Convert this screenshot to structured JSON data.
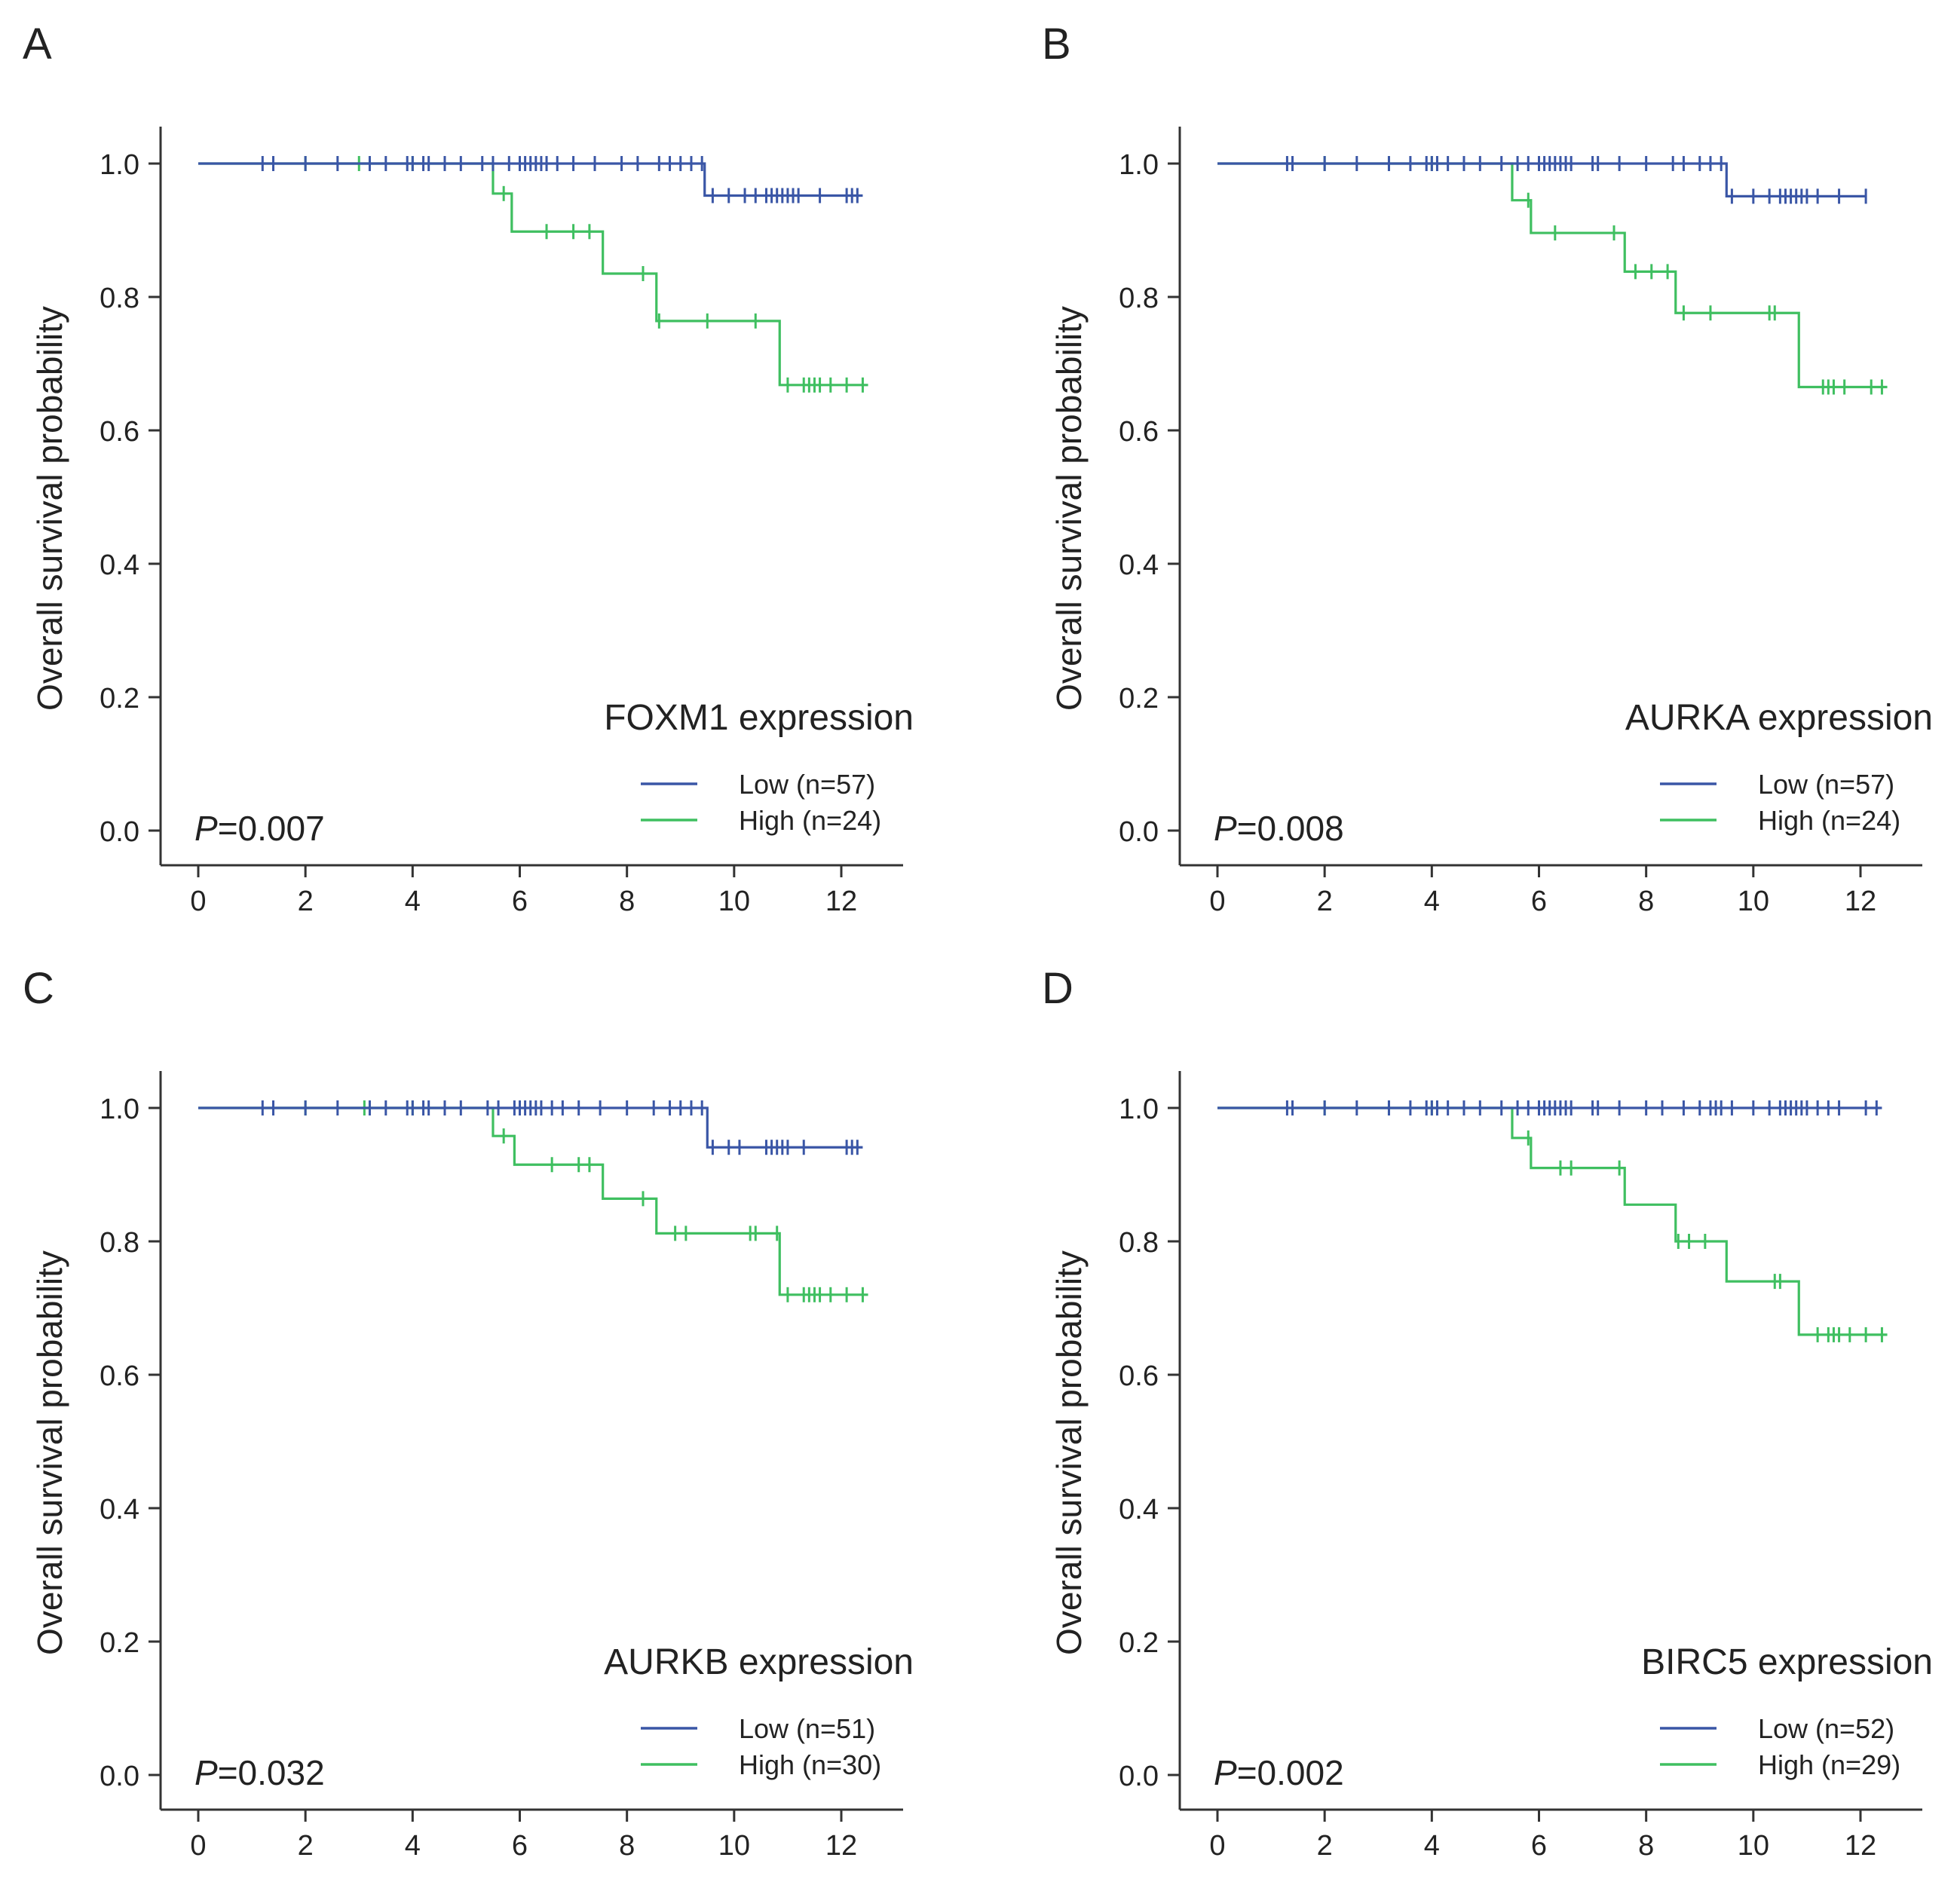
{
  "colors": {
    "low": "#3a56a6",
    "high": "#3fbf60",
    "axis": "#333333",
    "text": "#222222"
  },
  "chart_data": [
    {
      "type": "line",
      "panel": "A",
      "title": "FOXM1 expression",
      "ylabel": "Overall survival probability",
      "xlabel": "",
      "xlim": [
        0,
        12.5
      ],
      "ylim": [
        0.0,
        1.0
      ],
      "xticks": [
        "0",
        "2",
        "4",
        "6",
        "8",
        "10",
        "12"
      ],
      "yticks": [
        "0.0",
        "0.2",
        "0.4",
        "0.6",
        "0.8",
        "1.0"
      ],
      "pvalue_prefix": "P",
      "pvalue": "=0.007",
      "legend_position": "bottom-right",
      "series": [
        {
          "name": "Low (n=57)",
          "color_key": "low",
          "steps": [
            [
              0,
              1.0
            ],
            [
              9.45,
              0.952
            ],
            [
              12.4,
              0.952
            ]
          ],
          "censored": [
            1.2,
            1.4,
            2.0,
            2.6,
            3.2,
            3.5,
            3.9,
            4.0,
            4.2,
            4.3,
            4.6,
            4.9,
            5.3,
            5.5,
            5.8,
            6.0,
            6.1,
            6.2,
            6.3,
            6.4,
            6.5,
            6.7,
            7.0,
            7.4,
            7.9,
            8.2,
            8.6,
            8.8,
            9.0,
            9.2,
            9.4,
            9.6,
            9.9,
            10.2,
            10.4,
            10.6,
            10.7,
            10.8,
            10.9,
            11.0,
            11.1,
            11.2,
            11.6,
            12.1,
            12.2,
            12.3
          ]
        },
        {
          "name": "High (n=24)",
          "color_key": "high",
          "steps": [
            [
              0,
              1.0
            ],
            [
              5.5,
              0.955
            ],
            [
              5.85,
              0.898
            ],
            [
              7.55,
              0.835
            ],
            [
              8.55,
              0.764
            ],
            [
              10.85,
              0.668
            ],
            [
              12.5,
              0.668
            ]
          ],
          "censored": [
            2.0,
            3.0,
            4.0,
            5.7,
            6.5,
            7.0,
            7.3,
            8.3,
            8.6,
            9.5,
            10.4,
            11.0,
            11.3,
            11.4,
            11.5,
            11.6,
            11.8,
            12.1,
            12.4
          ]
        }
      ]
    },
    {
      "type": "line",
      "panel": "B",
      "title": "AURKA expression",
      "ylabel": "Overall survival probability",
      "xlabel": "",
      "xlim": [
        0,
        12.5
      ],
      "ylim": [
        0.0,
        1.0
      ],
      "xticks": [
        "0",
        "2",
        "4",
        "6",
        "8",
        "10",
        "12"
      ],
      "yticks": [
        "0.0",
        "0.2",
        "0.4",
        "0.6",
        "0.8",
        "1.0"
      ],
      "pvalue_prefix": "P",
      "pvalue": "=0.008",
      "legend_position": "bottom-right",
      "series": [
        {
          "name": "Low (n=57)",
          "color_key": "low",
          "steps": [
            [
              0,
              1.0
            ],
            [
              9.5,
              0.951
            ],
            [
              12.1,
              0.951
            ]
          ],
          "censored": [
            1.3,
            1.4,
            2.0,
            2.6,
            3.2,
            3.6,
            3.9,
            4.0,
            4.1,
            4.3,
            4.6,
            4.9,
            5.3,
            5.6,
            5.8,
            6.0,
            6.1,
            6.2,
            6.3,
            6.4,
            6.5,
            6.6,
            7.0,
            7.1,
            7.5,
            8.0,
            8.5,
            8.7,
            9.0,
            9.2,
            9.4,
            9.6,
            10.0,
            10.3,
            10.5,
            10.6,
            10.7,
            10.8,
            10.9,
            11.0,
            11.2,
            11.6,
            12.1
          ]
        },
        {
          "name": "High (n=24)",
          "color_key": "high",
          "steps": [
            [
              0,
              1.0
            ],
            [
              5.5,
              0.945
            ],
            [
              5.85,
              0.896
            ],
            [
              7.6,
              0.838
            ],
            [
              8.55,
              0.776
            ],
            [
              10.85,
              0.665
            ],
            [
              12.5,
              0.665
            ]
          ],
          "censored": [
            2.0,
            3.2,
            4.0,
            5.8,
            6.3,
            7.4,
            7.8,
            8.1,
            8.4,
            8.7,
            9.2,
            10.3,
            10.4,
            11.3,
            11.4,
            11.5,
            11.7,
            12.2,
            12.4
          ]
        }
      ]
    },
    {
      "type": "line",
      "panel": "C",
      "title": "AURKB expression",
      "ylabel": "Overall survival probability",
      "xlabel": "",
      "xlim": [
        0,
        12.5
      ],
      "ylim": [
        0.0,
        1.0
      ],
      "xticks": [
        "0",
        "2",
        "4",
        "6",
        "8",
        "10",
        "12"
      ],
      "yticks": [
        "0.0",
        "0.2",
        "0.4",
        "0.6",
        "0.8",
        "1.0"
      ],
      "pvalue_prefix": "P",
      "pvalue": "=0.032",
      "legend_position": "bottom-right",
      "series": [
        {
          "name": "Low (n=51)",
          "color_key": "low",
          "steps": [
            [
              0,
              1.0
            ],
            [
              9.5,
              0.941
            ],
            [
              12.4,
              0.941
            ]
          ],
          "censored": [
            1.2,
            1.4,
            2.0,
            2.6,
            3.2,
            3.5,
            3.9,
            4.0,
            4.2,
            4.3,
            4.6,
            4.9,
            5.4,
            5.6,
            5.9,
            6.0,
            6.1,
            6.2,
            6.3,
            6.4,
            6.6,
            6.8,
            7.1,
            7.5,
            8.0,
            8.5,
            8.8,
            9.0,
            9.2,
            9.4,
            9.6,
            9.9,
            10.1,
            10.6,
            10.7,
            10.8,
            10.9,
            11.0,
            11.3,
            12.1,
            12.2,
            12.3
          ]
        },
        {
          "name": "High (n=30)",
          "color_key": "high",
          "steps": [
            [
              0,
              1.0
            ],
            [
              5.5,
              0.958
            ],
            [
              5.9,
              0.915
            ],
            [
              7.55,
              0.864
            ],
            [
              8.55,
              0.812
            ],
            [
              10.85,
              0.72
            ],
            [
              12.5,
              0.72
            ]
          ],
          "censored": [
            2.0,
            3.1,
            4.0,
            5.7,
            6.6,
            7.1,
            7.3,
            8.3,
            8.9,
            9.1,
            10.3,
            10.4,
            10.8,
            11.0,
            11.3,
            11.4,
            11.5,
            11.6,
            11.8,
            12.1,
            12.4
          ]
        }
      ]
    },
    {
      "type": "line",
      "panel": "D",
      "title": "BIRC5 expression",
      "ylabel": "Overall survival probability",
      "xlabel": "",
      "xlim": [
        0,
        12.5
      ],
      "ylim": [
        0.0,
        1.0
      ],
      "xticks": [
        "0",
        "2",
        "4",
        "6",
        "8",
        "10",
        "12"
      ],
      "yticks": [
        "0.0",
        "0.2",
        "0.4",
        "0.6",
        "0.8",
        "1.0"
      ],
      "pvalue_prefix": "P",
      "pvalue": "=0.002",
      "legend_position": "bottom-right",
      "series": [
        {
          "name": "Low (n=52)",
          "color_key": "low",
          "steps": [
            [
              0,
              1.0
            ],
            [
              12.4,
              1.0
            ]
          ],
          "censored": [
            1.3,
            1.4,
            2.0,
            2.6,
            3.2,
            3.6,
            3.9,
            4.0,
            4.1,
            4.3,
            4.6,
            4.9,
            5.3,
            5.6,
            5.8,
            6.0,
            6.1,
            6.2,
            6.3,
            6.4,
            6.5,
            6.6,
            7.0,
            7.1,
            7.5,
            8.0,
            8.3,
            8.7,
            9.0,
            9.2,
            9.3,
            9.4,
            9.6,
            10.0,
            10.3,
            10.5,
            10.6,
            10.7,
            10.8,
            10.9,
            11.0,
            11.2,
            11.4,
            11.6,
            12.1,
            12.3
          ]
        },
        {
          "name": "High (n=29)",
          "color_key": "high",
          "steps": [
            [
              0,
              1.0
            ],
            [
              5.5,
              0.955
            ],
            [
              5.85,
              0.91
            ],
            [
              7.6,
              0.855
            ],
            [
              8.55,
              0.8
            ],
            [
              9.5,
              0.74
            ],
            [
              10.85,
              0.66
            ],
            [
              12.5,
              0.66
            ]
          ],
          "censored": [
            2.0,
            3.2,
            4.0,
            5.8,
            6.4,
            6.6,
            7.5,
            8.6,
            8.8,
            9.1,
            10.4,
            10.5,
            11.2,
            11.4,
            11.5,
            11.6,
            11.8,
            12.1,
            12.4
          ]
        }
      ]
    }
  ]
}
